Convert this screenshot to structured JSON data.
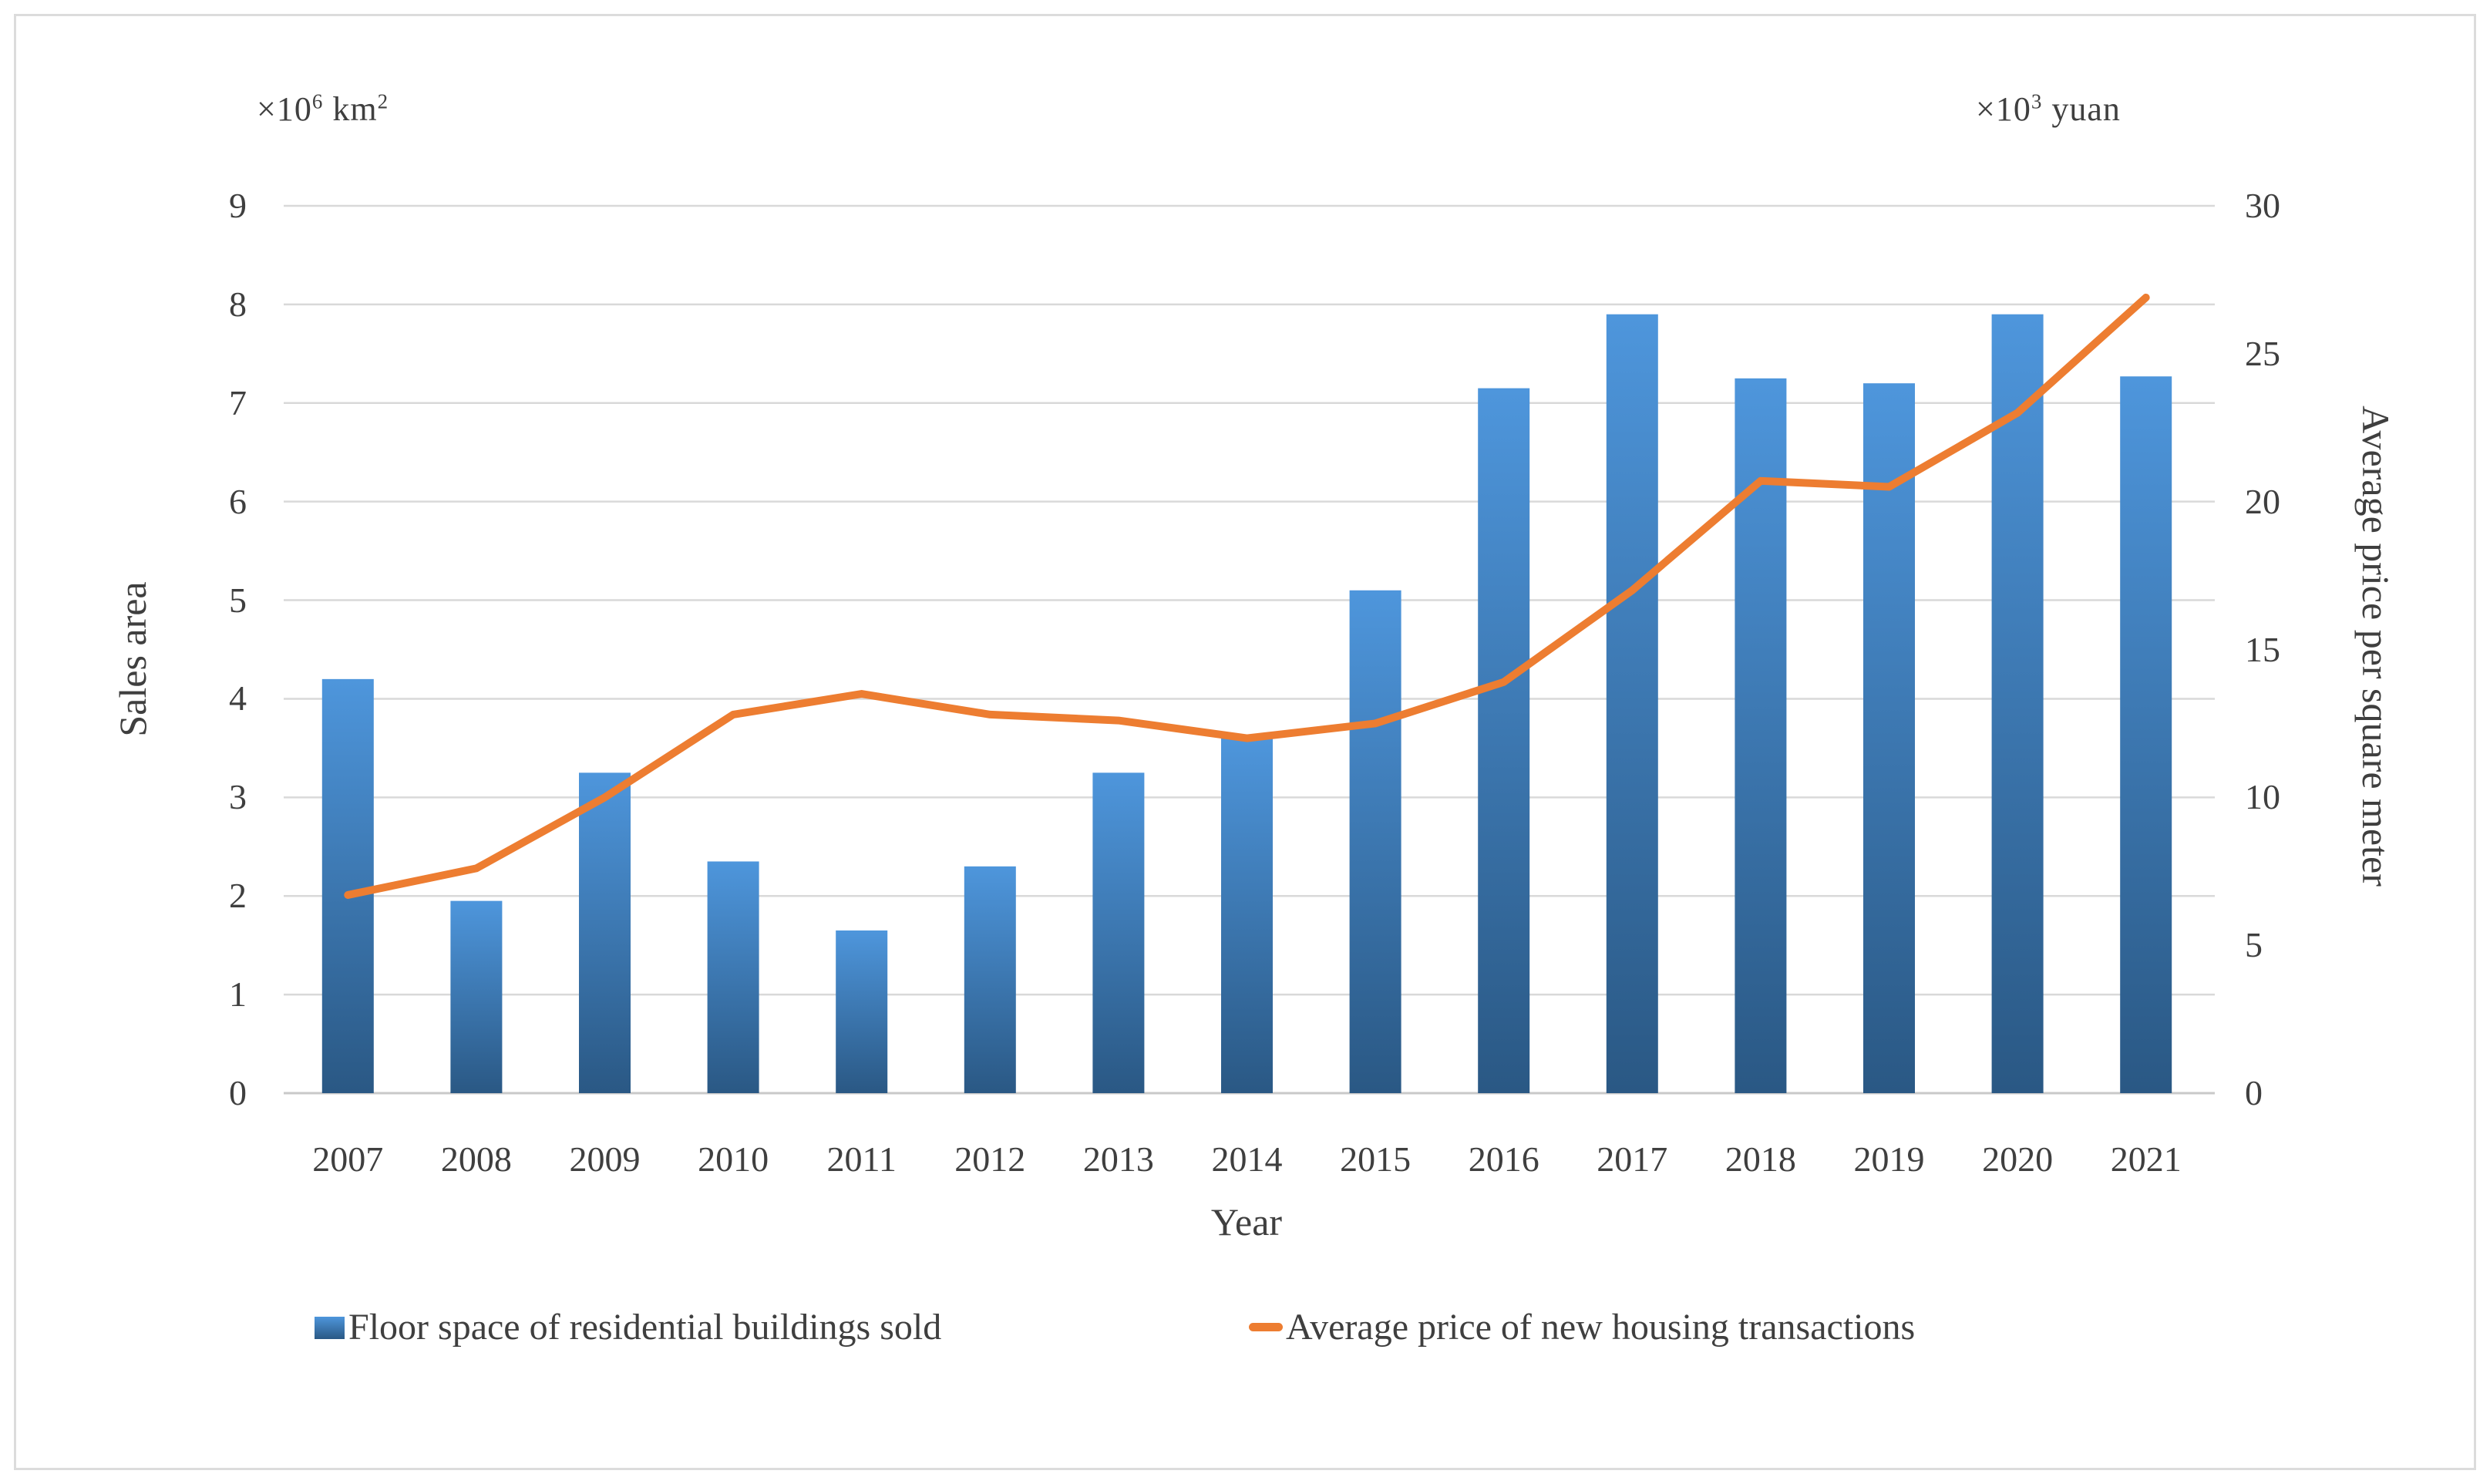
{
  "chart_data": {
    "type": "bar+line",
    "categories": [
      "2007",
      "2008",
      "2009",
      "2010",
      "2011",
      "2012",
      "2013",
      "2014",
      "2015",
      "2016",
      "2017",
      "2018",
      "2019",
      "2020",
      "2021"
    ],
    "series": [
      {
        "name": "Floor space of residential buildings sold",
        "type": "bar",
        "axis": "left",
        "values": [
          4.2,
          1.95,
          3.25,
          2.35,
          1.65,
          2.3,
          3.25,
          3.6,
          5.1,
          7.15,
          7.9,
          7.25,
          7.2,
          7.9,
          7.27
        ],
        "color_top": "#4e96dc",
        "color_bottom": "#2a5884"
      },
      {
        "name": "Average price of new housing transactions",
        "type": "line",
        "axis": "right",
        "values": [
          6.7,
          7.6,
          10.0,
          12.8,
          13.5,
          12.8,
          12.6,
          12.0,
          12.5,
          13.9,
          17.0,
          20.7,
          20.5,
          23.0,
          26.9
        ],
        "color": "#ed7d31"
      }
    ],
    "left_axis": {
      "title": "Sales area",
      "unit_prefix": "×10",
      "unit_exp": "6",
      "unit_suffix": " km",
      "unit_suffix_exp": "2",
      "min": 0,
      "max": 9,
      "step": 1,
      "ticks": [
        0,
        1,
        2,
        3,
        4,
        5,
        6,
        7,
        8,
        9
      ]
    },
    "right_axis": {
      "title": "Average price per square meter",
      "unit_prefix": "×10",
      "unit_exp": "3",
      "unit_suffix": " yuan",
      "min": 0,
      "max": 30,
      "step": 5,
      "ticks": [
        0,
        5,
        10,
        15,
        20,
        25,
        30
      ]
    },
    "x_axis": {
      "title": "Year"
    },
    "legend_position": "bottom",
    "grid": true,
    "grid_color": "#d9d9d9",
    "baseline_color": "#c9c9c9",
    "text_color": "#3f3f3f"
  }
}
